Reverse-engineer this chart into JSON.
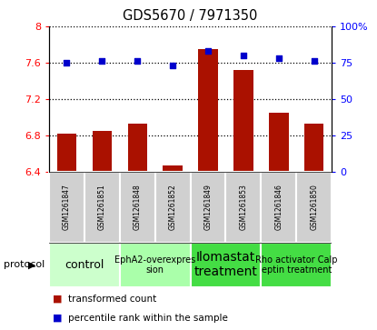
{
  "title": "GDS5670 / 7971350",
  "samples": [
    "GSM1261847",
    "GSM1261851",
    "GSM1261848",
    "GSM1261852",
    "GSM1261849",
    "GSM1261853",
    "GSM1261846",
    "GSM1261850"
  ],
  "bar_values": [
    6.82,
    6.85,
    6.93,
    6.47,
    7.75,
    7.52,
    7.05,
    6.93
  ],
  "dot_values": [
    75,
    76,
    76,
    73,
    83,
    80,
    78,
    76
  ],
  "ylim_left": [
    6.4,
    8.0
  ],
  "ylim_right": [
    0,
    100
  ],
  "yticks_left": [
    6.4,
    6.8,
    7.2,
    7.6,
    8.0
  ],
  "ytick_labels_left": [
    "6.4",
    "6.8",
    "7.2",
    "7.6",
    "8"
  ],
  "yticks_right": [
    0,
    25,
    50,
    75,
    100
  ],
  "ytick_labels_right": [
    "0",
    "25",
    "50",
    "75",
    "100%"
  ],
  "protocols": [
    {
      "label": "control",
      "span": [
        0,
        1
      ],
      "color": "#ccffcc",
      "fontsize": 9
    },
    {
      "label": "EphA2-overexpres\nsion",
      "span": [
        2,
        3
      ],
      "color": "#aaffaa",
      "fontsize": 7
    },
    {
      "label": "Ilomastat\ntreatment",
      "span": [
        4,
        5
      ],
      "color": "#44dd44",
      "fontsize": 10
    },
    {
      "label": "Rho activator Calp\neptin treatment",
      "span": [
        6,
        7
      ],
      "color": "#44dd44",
      "fontsize": 7
    }
  ],
  "sample_bg_color": "#d0d0d0",
  "sample_border_color": "white",
  "bar_color": "#aa1100",
  "dot_color": "#0000cc",
  "bar_bottom": 6.4,
  "legend_entries": [
    "transformed count",
    "percentile rank within the sample"
  ],
  "protocol_label": "protocol"
}
